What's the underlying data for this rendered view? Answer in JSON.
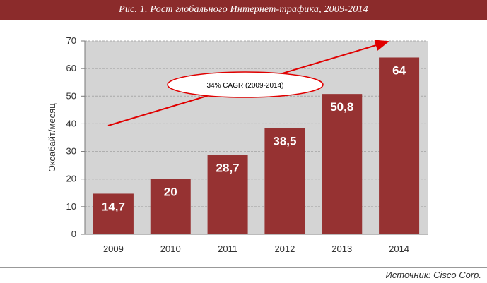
{
  "header": {
    "title": "Рис. 1. Рост глобального Интернет-трафика, 2009-2014"
  },
  "footer": {
    "source": "Источник: Cisco Corp."
  },
  "colors": {
    "bar": "#963232",
    "plot_bg": "#d4d4d4",
    "title_bg": "#8b2b2b",
    "arrow": "#e00000"
  },
  "chart_data": {
    "type": "bar",
    "title": "Рис. 1. Рост глобального Интернет-трафика, 2009-2014",
    "xlabel": "",
    "ylabel": "Эксабайт/месяц",
    "categories": [
      "2009",
      "2010",
      "2011",
      "2012",
      "2013",
      "2014"
    ],
    "values": [
      14.7,
      20,
      28.7,
      38.5,
      50.8,
      64
    ],
    "data_labels": [
      "14,7",
      "20",
      "28,7",
      "38,5",
      "50,8",
      "64"
    ],
    "ylim": [
      0,
      70
    ],
    "yticks": [
      0,
      10,
      20,
      30,
      40,
      50,
      60,
      70
    ],
    "grid": true,
    "annotation": {
      "text": "34% CAGR (2009-2014)"
    }
  }
}
